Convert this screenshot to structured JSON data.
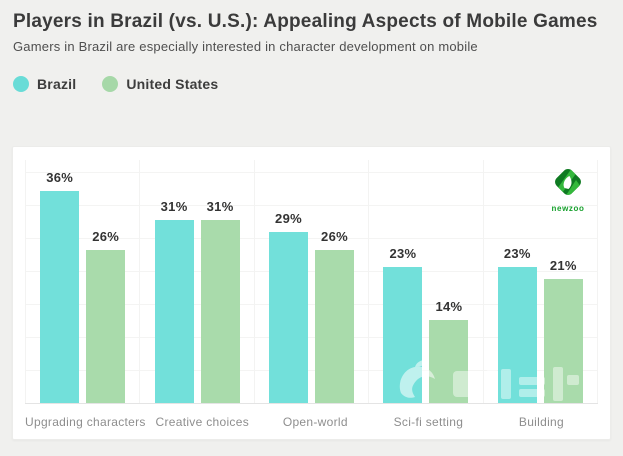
{
  "header": {
    "title": "Players in Brazil (vs. U.S.): Appealing Aspects of Mobile Games",
    "subtitle": "Gamers in Brazil are especially interested in character development on mobile"
  },
  "legend": [
    {
      "label": "Brazil",
      "color": "#69dcd7"
    },
    {
      "label": "United States",
      "color": "#a6d8a8"
    }
  ],
  "logo": {
    "text": "newzoo",
    "color": "#16a02c"
  },
  "chart_data": {
    "type": "bar",
    "title": "Players in Brazil (vs. U.S.): Appealing Aspects of Mobile Games",
    "subtitle": "Gamers in Brazil are especially interested in character development on mobile",
    "categories": [
      "Upgrading characters",
      "Creative choices",
      "Open-world",
      "Sci-fi setting",
      "Building"
    ],
    "series": [
      {
        "name": "Brazil",
        "color": "#72e0da",
        "values": [
          36,
          31,
          29,
          23,
          23
        ]
      },
      {
        "name": "United States",
        "color": "#a9dbab",
        "values": [
          26,
          31,
          26,
          14,
          21
        ]
      }
    ],
    "value_suffix": "%",
    "xlabel": "",
    "ylabel": "",
    "ylim": [
      0,
      41
    ],
    "grid": true,
    "legend_position": "top-left",
    "data_labels": true
  }
}
